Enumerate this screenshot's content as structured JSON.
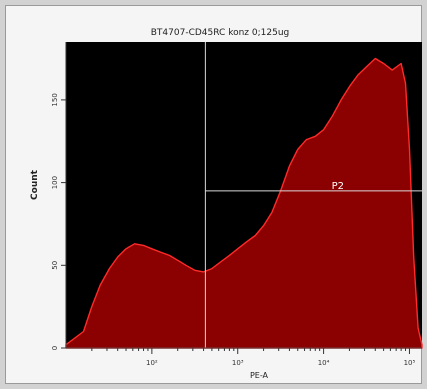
{
  "chart_data": {
    "type": "area",
    "title": "BT4707-CD45RC konz 0;125ug",
    "xlabel": "PE-A",
    "ylabel": "Count",
    "xscale": "log",
    "x_tick_labels": [
      "10²",
      "10³",
      "10⁴",
      "10⁵"
    ],
    "x_ticks": [
      100,
      1000,
      10000,
      100000
    ],
    "xlim": [
      10,
      140000
    ],
    "ylim": [
      0,
      185
    ],
    "y_tick_labels": [
      "0",
      "50",
      "100",
      "150"
    ],
    "y_ticks": [
      0,
      50,
      100,
      150
    ],
    "grid": false,
    "background_color": "#000000",
    "fill_color": "#8b0000",
    "line_color": "#ff2a2a",
    "gate": {
      "name": "P2",
      "x_start": 420,
      "y_level": 95,
      "color": "#d9d9d9"
    },
    "series": [
      {
        "x": [
          10,
          16,
          20,
          25,
          32,
          40,
          50,
          63,
          80,
          100,
          126,
          160,
          200,
          250,
          316,
          400,
          500,
          630,
          800,
          1000,
          1260,
          1600,
          2000,
          2500,
          3160,
          4000,
          5000,
          6300,
          8000,
          10000,
          12600,
          16000,
          20000,
          25000,
          31600,
          40000,
          50000,
          63000,
          80000,
          90000,
          100000,
          112000,
          126000,
          140000
        ],
        "values": [
          2,
          10,
          25,
          38,
          48,
          55,
          60,
          63,
          62,
          60,
          58,
          56,
          53,
          50,
          47,
          46,
          48,
          52,
          56,
          60,
          64,
          68,
          74,
          82,
          95,
          110,
          120,
          126,
          128,
          132,
          140,
          150,
          158,
          165,
          170,
          175,
          172,
          168,
          172,
          160,
          120,
          55,
          12,
          2
        ]
      }
    ]
  }
}
